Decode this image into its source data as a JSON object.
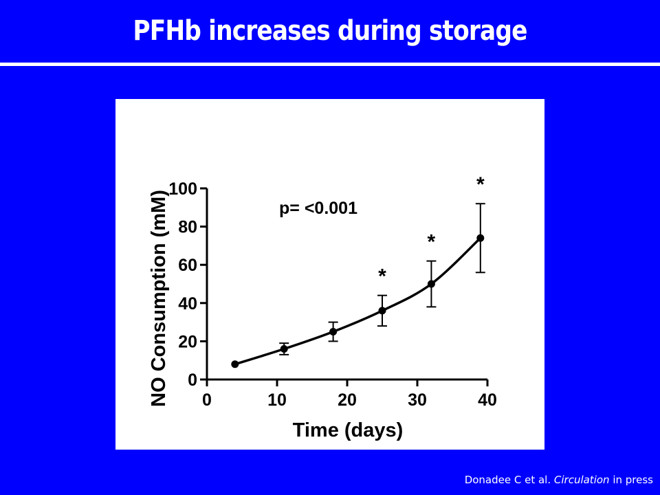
{
  "slide": {
    "title": "PFHb increases during storage",
    "citation_authors": "Donadee C et al.",
    "citation_journal": "Circulation",
    "citation_status": "in press"
  },
  "colors": {
    "background": "#0000FF",
    "title": "#FFFFFF",
    "plot_line": "#000000",
    "panel": "#FFFFFF"
  },
  "chart_data": {
    "type": "line",
    "xlabel": "Time (days)",
    "ylabel": "NO Consumption (mM)",
    "xlim": [
      0,
      40
    ],
    "ylim": [
      0,
      100
    ],
    "xticks": [
      0,
      10,
      20,
      30,
      40
    ],
    "yticks": [
      0,
      20,
      40,
      60,
      80,
      100
    ],
    "x": [
      4,
      11,
      18,
      25,
      32,
      39
    ],
    "series": [
      {
        "values": [
          8,
          16,
          25,
          36,
          50,
          74
        ],
        "error": [
          0,
          3,
          5,
          8,
          12,
          18
        ],
        "significant": [
          false,
          false,
          false,
          true,
          true,
          true
        ]
      }
    ],
    "significance_marker": "*",
    "annotation": "p= <0.001",
    "grid": false,
    "legend": "none"
  }
}
